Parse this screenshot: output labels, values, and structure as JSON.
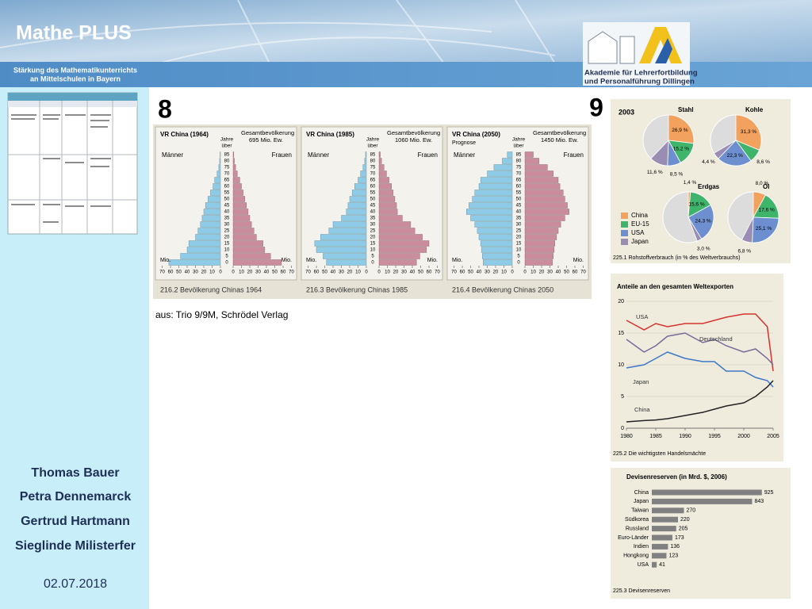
{
  "header": {
    "title": "Mathe PLUS",
    "subtitle": [
      "Stärkung des Mathematikunterrichts",
      "an Mittelschulen in Bayern"
    ],
    "institution": [
      "Akademie für Lehrerfortbildung",
      "und Personalführung Dillingen"
    ]
  },
  "sidebar": {
    "authors": [
      "Thomas Bauer",
      "Petra Dennemarck",
      "Gertrud Hartmann",
      "Sieglinde Milisterfer"
    ],
    "date": "02.07.2018"
  },
  "slide_numbers": [
    "8",
    "9"
  ],
  "source": "aus: Trio 9/9M, Schrödel Verlag",
  "pyramids": {
    "type": "population-pyramid",
    "men_label": "Männer",
    "women_label": "Frauen",
    "age_header": [
      "Jahre",
      "über"
    ],
    "unit": "Mio.",
    "total_label": "Gesamtbevölkerung",
    "ages": [
      0,
      5,
      10,
      15,
      20,
      25,
      30,
      35,
      40,
      45,
      50,
      55,
      60,
      65,
      70,
      75,
      80,
      85
    ],
    "xticks": [
      0,
      10,
      20,
      30,
      40,
      50,
      60,
      70
    ],
    "colors": {
      "men": "#8ecbe6",
      "women": "#c98d9e"
    },
    "charts": [
      {
        "title": "VR China (1964)",
        "total": "695 Mio. Ew.",
        "caption": "216.2 Bevölkerung Chinas 1964",
        "men": [
          62,
          48,
          40,
          38,
          30,
          27,
          24,
          22,
          20,
          18,
          15,
          12,
          9,
          7,
          4,
          2,
          1,
          0.5
        ],
        "women": [
          58,
          45,
          38,
          36,
          28,
          25,
          22,
          20,
          18,
          16,
          14,
          12,
          10,
          8,
          5,
          3,
          1.5,
          0.8
        ]
      },
      {
        "title": "VR China (1985)",
        "total": "1060 Mio. Ew.",
        "caption": "216.3 Bevölkerung Chinas 1985",
        "men": [
          48,
          52,
          60,
          62,
          55,
          45,
          40,
          30,
          24,
          22,
          20,
          17,
          14,
          10,
          7,
          4,
          2,
          1
        ],
        "women": [
          45,
          49,
          57,
          60,
          52,
          43,
          38,
          28,
          22,
          21,
          19,
          17,
          15,
          12,
          9,
          6,
          3,
          1.5
        ]
      },
      {
        "title": "VR China (2050)",
        "note": "Prognose",
        "total": "1450 Mio. Ew.",
        "caption": "216.4 Bevölkerung Chinas 2050",
        "men": [
          35,
          36,
          37,
          38,
          40,
          42,
          45,
          50,
          55,
          52,
          48,
          45,
          40,
          38,
          30,
          22,
          12,
          6
        ],
        "women": [
          33,
          34,
          35,
          36,
          38,
          40,
          43,
          48,
          53,
          51,
          48,
          46,
          42,
          40,
          34,
          27,
          17,
          10
        ]
      }
    ]
  },
  "pies": {
    "type": "pie",
    "year": "2003",
    "legend": [
      "China",
      "EU-15",
      "USA",
      "Japan"
    ],
    "colors": [
      "#f2a25e",
      "#3fb56b",
      "#6d8fcf",
      "#9a8db3"
    ],
    "caption": "225.1 Rohstoffverbrauch (in % des Weltverbrauchs)",
    "charts": [
      {
        "title": "Stahl",
        "values": [
          26.9,
          15.2,
          8.5,
          11.6
        ],
        "value_labels": [
          "26,9 %",
          "15,2 %",
          "8,5 %",
          "11,6 %"
        ]
      },
      {
        "title": "Kohle",
        "values": [
          31.3,
          8.6,
          22.3,
          4.4
        ],
        "value_labels": [
          "31,3 %",
          "8,6 %",
          "22,3 %",
          "4,4 %"
        ]
      },
      {
        "title": "Erdgas",
        "values": [
          1.4,
          15.6,
          24.3,
          3.0
        ],
        "value_labels": [
          "1,4 %",
          "15,6 %",
          "24,3 %",
          "3,0 %"
        ]
      },
      {
        "title": "Öl",
        "values": [
          8.0,
          17.6,
          25.1,
          6.8
        ],
        "value_labels": [
          "8,0 %",
          "17,6 %",
          "25,1 %",
          "6,8 %"
        ]
      }
    ]
  },
  "exports": {
    "type": "line",
    "title": "Anteile an den gesamten Weltexporten",
    "x": [
      1980,
      1983,
      1985,
      1987,
      1990,
      1993,
      1995,
      1997,
      2000,
      2002,
      2004,
      2005
    ],
    "xlim": [
      1980,
      2005
    ],
    "xticks": [
      1980,
      1985,
      1990,
      1995,
      2000,
      2005
    ],
    "ylim": [
      0,
      20
    ],
    "yticks": [
      0,
      5,
      10,
      15,
      20
    ],
    "grid": true,
    "series": [
      {
        "name": "USA",
        "color": "#d8322e",
        "values": [
          17,
          15.5,
          16.5,
          16,
          16.5,
          16.5,
          17,
          17.5,
          18,
          18,
          16,
          9
        ]
      },
      {
        "name": "Deutschland",
        "color": "#7a6a9c",
        "values": [
          14,
          12,
          13,
          14.5,
          15,
          13.5,
          14,
          13,
          12,
          12.5,
          11,
          10
        ]
      },
      {
        "name": "Japan",
        "color": "#3e78c8",
        "values": [
          9.5,
          10,
          11,
          12,
          11,
          10.5,
          10.5,
          9,
          9,
          8,
          7.5,
          6.5
        ]
      },
      {
        "name": "China",
        "color": "#222222",
        "values": [
          1,
          1.2,
          1.3,
          1.5,
          2,
          2.5,
          3,
          3.5,
          4,
          5,
          6.5,
          7.5
        ]
      }
    ],
    "caption": "225.2 Die wichtigsten Handelsmächte"
  },
  "reserves": {
    "type": "bar",
    "title": "Devisenreserven (in Mrd. $, 2006)",
    "categories": [
      "China",
      "Japan",
      "Taiwan",
      "Südkorea",
      "Russland",
      "Euro-Länder",
      "Indien",
      "Hongkong",
      "USA"
    ],
    "values": [
      925,
      843,
      270,
      220,
      205,
      173,
      136,
      123,
      41
    ],
    "color": "#808080",
    "caption": "225.3 Devisenreserven"
  }
}
